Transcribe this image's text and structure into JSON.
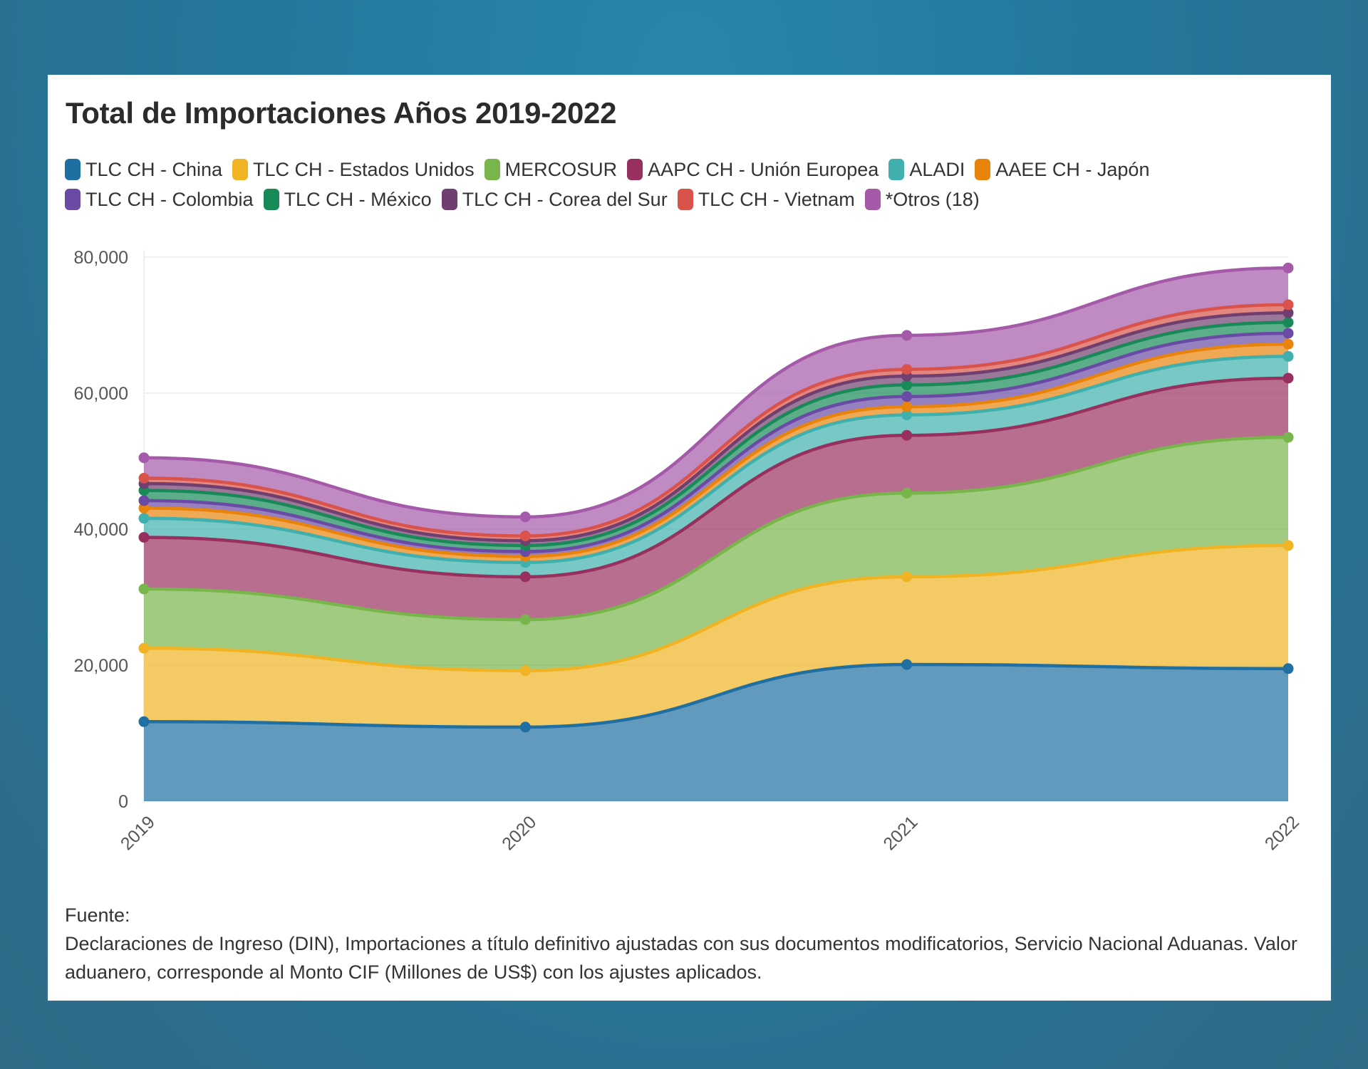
{
  "chart_data": {
    "type": "area",
    "stacked": true,
    "title": "Total de Importaciones Años 2019-2022",
    "x": [
      "2019",
      "2020",
      "2021",
      "2022"
    ],
    "ylim": [
      0,
      80000
    ],
    "yticks": [
      "0",
      "20,000",
      "40,000",
      "60,000",
      "80,000"
    ],
    "ytick_values": [
      0,
      20000,
      40000,
      60000,
      80000
    ],
    "grid": true,
    "legend_position": "top-left",
    "series": [
      {
        "name": "TLC CH - China",
        "color": "#1f6fa3",
        "values": [
          11700,
          10900,
          20100,
          19500
        ]
      },
      {
        "name": "TLC CH - Estados Unidos",
        "color": "#f0b323",
        "values": [
          10800,
          8300,
          12900,
          18100
        ]
      },
      {
        "name": "MERCOSUR",
        "color": "#78b54b",
        "values": [
          8700,
          7500,
          12300,
          15900
        ]
      },
      {
        "name": "AAPC CH - Unión Europea",
        "color": "#98305f",
        "values": [
          7600,
          6300,
          8500,
          8700
        ]
      },
      {
        "name": "ALADI",
        "color": "#3fb0ae",
        "values": [
          2800,
          2100,
          3000,
          3200
        ]
      },
      {
        "name": "AAEE CH - Japón",
        "color": "#e8830c",
        "values": [
          1500,
          900,
          1200,
          1800
        ]
      },
      {
        "name": "TLC CH - Colombia",
        "color": "#6a4aa5",
        "values": [
          1100,
          700,
          1500,
          1600
        ]
      },
      {
        "name": "TLC CH - México",
        "color": "#178a57",
        "values": [
          1500,
          900,
          1700,
          1600
        ]
      },
      {
        "name": "TLC CH - Corea del Sur",
        "color": "#713f6f",
        "values": [
          1000,
          700,
          1300,
          1400
        ]
      },
      {
        "name": "TLC CH - Vietnam",
        "color": "#d9534a",
        "values": [
          800,
          700,
          1000,
          1200
        ]
      },
      {
        "name": "*Otros (18)",
        "color": "#a45aa8",
        "values": [
          3000,
          2800,
          5000,
          5400
        ]
      }
    ]
  },
  "source": {
    "label": "Fuente:",
    "text": "Declaraciones de Ingreso (DIN), Importaciones a título definitivo ajustadas con sus documentos modificatorios, Servicio Nacional Aduanas. Valor aduanero, corresponde al Monto CIF (Millones de US$) con los ajustes aplicados."
  }
}
